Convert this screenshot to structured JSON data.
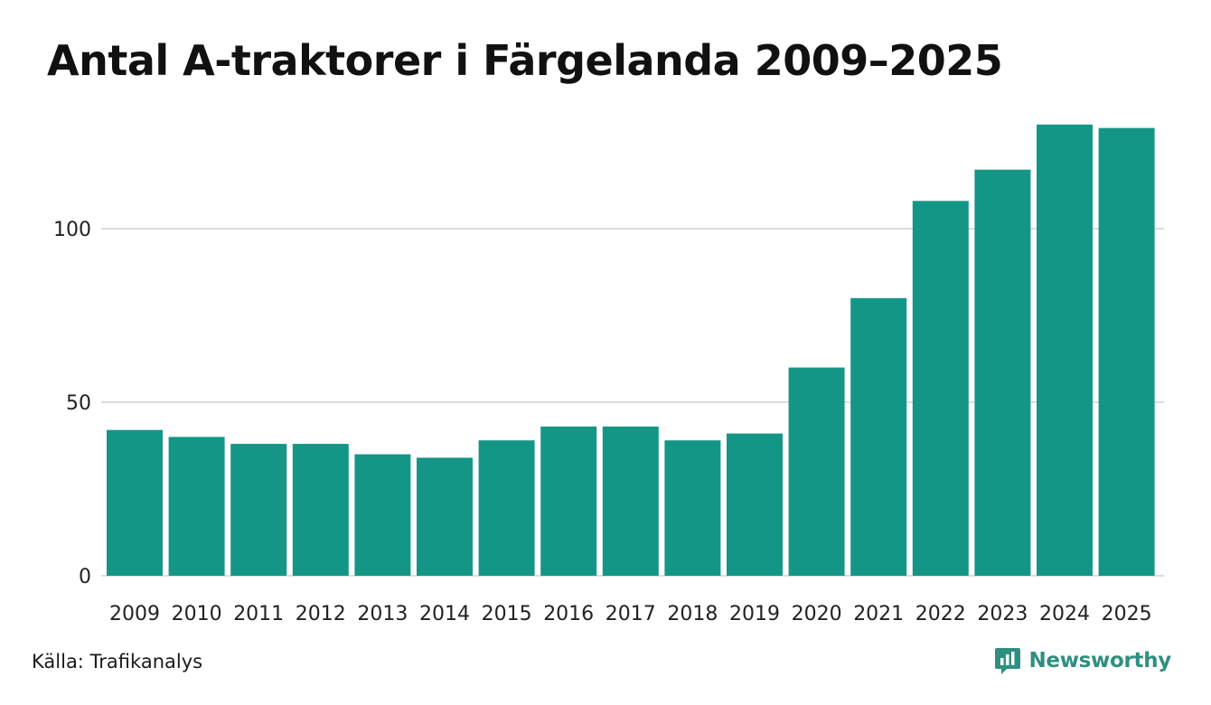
{
  "title": "Antal A-traktorer i Färgelanda 2009–2025",
  "source": "Källa: Trafikanalys",
  "brand": {
    "name": "Newsworthy",
    "icon": "newsworthy-logo-icon",
    "color": "#2e8f80"
  },
  "colors": {
    "bar": "#149687",
    "grid": "#dddddd",
    "axis_text": "#222222"
  },
  "chart_data": {
    "type": "bar",
    "categories": [
      "2009",
      "2010",
      "2011",
      "2012",
      "2013",
      "2014",
      "2015",
      "2016",
      "2017",
      "2018",
      "2019",
      "2020",
      "2021",
      "2022",
      "2023",
      "2024",
      "2025"
    ],
    "values": [
      42,
      40,
      38,
      38,
      35,
      34,
      39,
      43,
      43,
      39,
      41,
      60,
      80,
      108,
      117,
      130,
      129
    ],
    "yticks": [
      0,
      50,
      100
    ],
    "ylim": [
      0,
      130
    ],
    "grid": true,
    "xlabel": "",
    "ylabel": ""
  }
}
